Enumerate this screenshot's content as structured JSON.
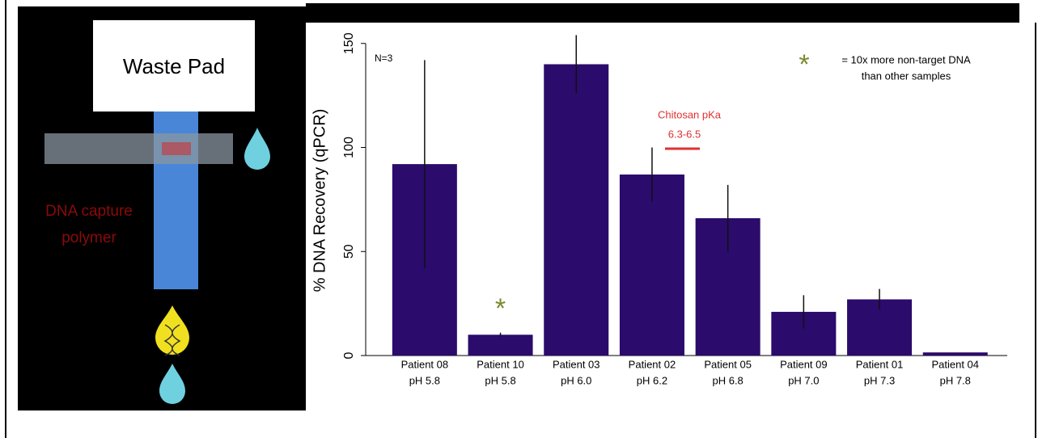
{
  "diagram": {
    "waste_pad": "Waste Pad",
    "capture_label": [
      "DNA capture",
      "polymer"
    ]
  },
  "chart_data": {
    "type": "bar",
    "y_label": "% DNA Recovery (qPCR)",
    "categories": [
      [
        "Patient 08",
        "pH 5.8"
      ],
      [
        "Patient 10",
        "pH 5.8"
      ],
      [
        "Patient 03",
        "pH 6.0"
      ],
      [
        "Patient 02",
        "pH 6.2"
      ],
      [
        "Patient 05",
        "pH 6.8"
      ],
      [
        "Patient 09",
        "pH 7.0"
      ],
      [
        "Patient 01",
        "pH 7.3"
      ],
      [
        "Patient 04",
        "pH 7.8"
      ]
    ],
    "values": [
      92,
      10,
      140,
      87,
      66,
      21,
      27,
      1.5
    ],
    "errors": [
      50,
      1,
      14,
      13,
      16,
      8,
      5,
      0
    ],
    "color": "#2b0b6b",
    "ylim": [
      0,
      160
    ],
    "yticks": [
      0,
      50,
      100,
      150
    ],
    "grid": false,
    "annotations": {
      "n": "N=3",
      "star": "*",
      "legend": [
        "= 10x more non-target DNA",
        "than other samples"
      ],
      "pka": [
        "Chitosan pKa",
        "6.3-6.5"
      ]
    }
  }
}
